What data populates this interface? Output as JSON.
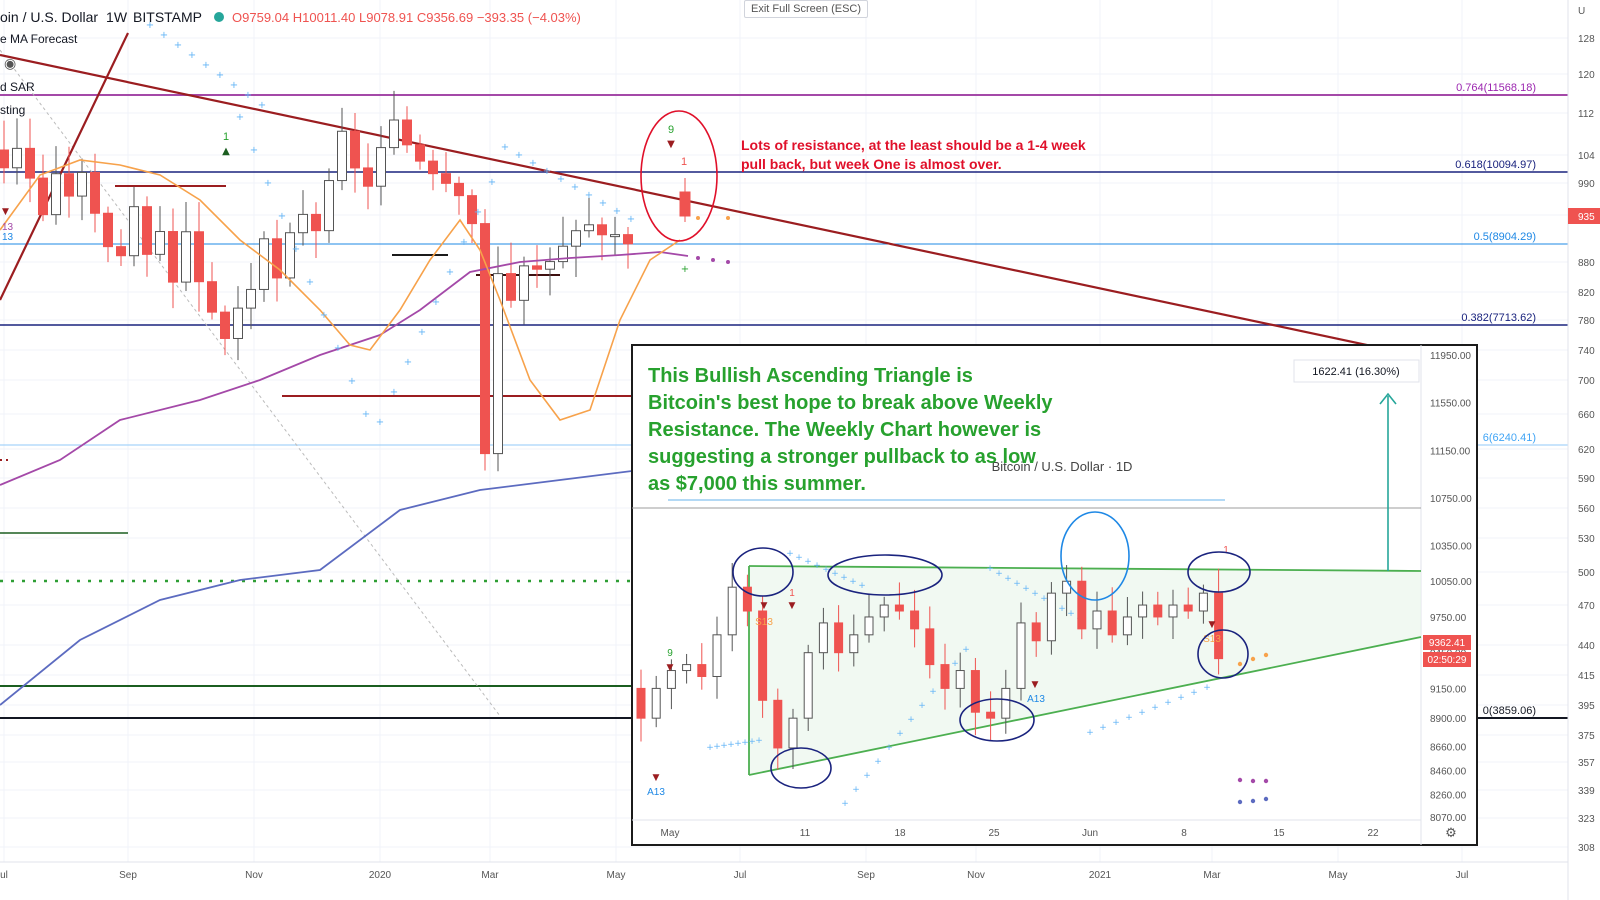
{
  "header": {
    "symbol": "oin / U.S. Dollar",
    "interval": "1W",
    "exchange": "BITSTAMP",
    "ohlc": "O9759.04 H10011.40 L9078.91 C9356.69 −393.35 (−4.03%)"
  },
  "indicators": [
    "e MA Forecast",
    "d SAR",
    "sting"
  ],
  "exit_fullscreen_label": "Exit Full Screen (ESC)",
  "annotation_red": "Lots of resistance, at the least should be a 1-4 week pull back, but week One is almost over.",
  "fib_labels": [
    {
      "text": "0.764(11568.18)",
      "price": 11568.18,
      "color": "#9c27b0"
    },
    {
      "text": "0.618(10094.97)",
      "price": 10094.97,
      "color": "#1a237e"
    },
    {
      "text": "0.5(8904.29)",
      "price": 8904.29,
      "color": "#1e88e5"
    },
    {
      "text": "0.382(7713.62)",
      "price": 7713.62,
      "color": "#1a237e"
    },
    {
      "text": "6(6240.41)",
      "price": 6240.41,
      "color": "#42a5f5"
    },
    {
      "text": "0(3859.06)",
      "price": 3859.06,
      "color": "#131722"
    }
  ],
  "colors": {
    "up": "#ffffff",
    "down": "#ef5350",
    "ma_short": "#f7a24b",
    "ma_mid": "#a449a8",
    "ma_long": "#5c6bc0",
    "sar": "#64b5f6",
    "trend": "#9b1d20",
    "triangle": "#4caf50",
    "text_green": "#27a12e"
  },
  "chart_data": [
    {
      "type": "candlestick",
      "title": "oin / U.S. Dollar · 1W · BITSTAMP",
      "x_tick_labels": [
        "ul",
        "Sep",
        "Nov",
        "2020",
        "Mar",
        "May",
        "Jul",
        "Sep",
        "Nov",
        "2021",
        "Mar",
        "May",
        "Jul"
      ],
      "y_tick_labels": [
        "128",
        "120",
        "112",
        "104",
        "990",
        "935",
        "880",
        "820",
        "780",
        "740",
        "700",
        "660",
        "620",
        "590",
        "560",
        "530",
        "500",
        "470",
        "440",
        "415",
        "395",
        "375",
        "357",
        "339",
        "323",
        "308"
      ],
      "price_label": "935",
      "last_candle": {
        "open": 9759.04,
        "high": 10011.4,
        "low": 9078.91,
        "close": 9356.69,
        "change": -393.35,
        "change_pct": -4.03
      },
      "markers": [
        "1",
        "9",
        "1",
        "13",
        "13"
      ]
    },
    {
      "type": "candlestick",
      "title": "Bitcoin / U.S. Dollar · 1D",
      "x_tick_labels": [
        "May",
        "11",
        "18",
        "25",
        "Jun",
        "8",
        "15",
        "22"
      ],
      "y_ticks": [
        11950,
        11550,
        11150,
        10750,
        10350,
        10050,
        9750,
        9450,
        9150,
        8900,
        8660,
        8460,
        8260,
        8070
      ],
      "y_tick_labels": [
        "11950.00",
        "11550.00",
        "11150.00",
        "10750.00",
        "10350.00",
        "10050.00",
        "9750.00",
        "9450.00",
        "9150.00",
        "8900.00",
        "8660.00",
        "8460.00",
        "8260.00",
        "8070.00"
      ],
      "last_price_label": "9362.41",
      "countdown_label": "02:50:29",
      "measure_label": "1622.41 (16.30%)",
      "markers": [
        "9",
        "1",
        "S13",
        "1",
        "S13",
        "A13",
        "A13",
        "1"
      ],
      "annotation_green": "This Bullish Ascending Triangle is Bitcoin's best hope to break above Weekly Resistance. The Weekly Chart however is suggesting a stronger pullback to as low as $7,000 this summer."
    }
  ]
}
